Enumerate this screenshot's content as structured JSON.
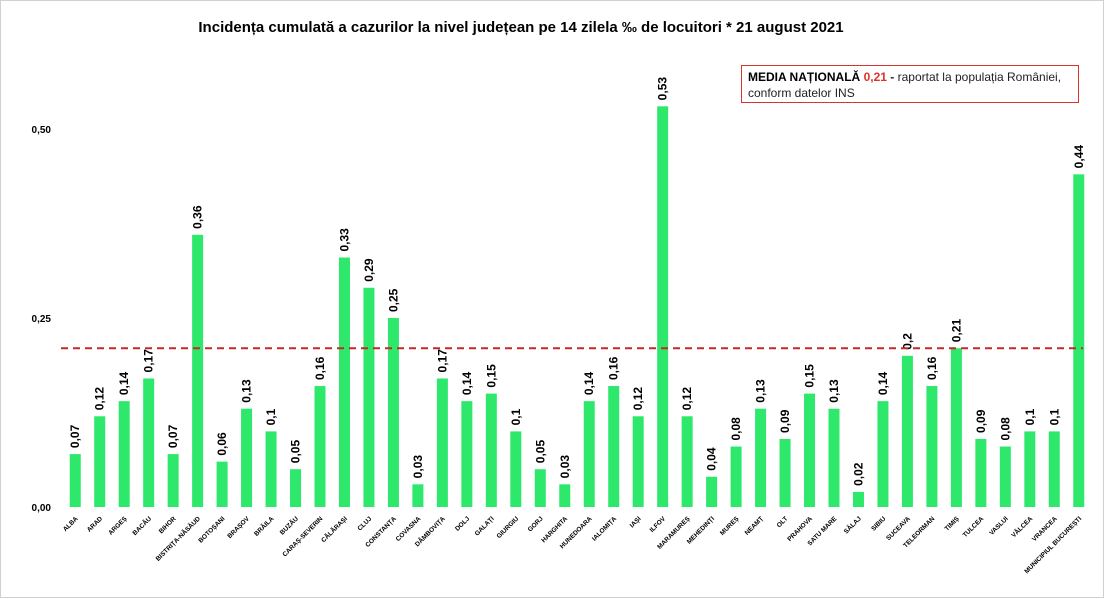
{
  "chart_data": {
    "type": "bar",
    "title": "Incidența cumulată a cazurilor la nivel județean pe 14 zilela ‰ de locuitori *  21 august 2021",
    "xlabel": "",
    "ylabel": "",
    "ylim": [
      0,
      0.56
    ],
    "yticks": [
      "0,00",
      "0,25",
      "0,50"
    ],
    "ytick_values": [
      0,
      0.25,
      0.5
    ],
    "grid": false,
    "bar_color": "#2ee86c",
    "reference_line": {
      "value": 0.21,
      "color": "#c62828",
      "style": "dashed"
    },
    "categories": [
      "ALBA",
      "ARAD",
      "ARGEȘ",
      "BACĂU",
      "BIHOR",
      "BISTRIȚA-NĂSĂUD",
      "BOTOȘANI",
      "BRAȘOV",
      "BRĂILA",
      "BUZĂU",
      "CARAȘ-SEVERIN",
      "CĂLĂRAȘI",
      "CLUJ",
      "CONSTANȚA",
      "COVASNA",
      "DÂMBOVIȚA",
      "DOLJ",
      "GALAȚI",
      "GIURGIU",
      "GORJ",
      "HARGHITA",
      "HUNEDOARA",
      "IALOMIȚA",
      "IAȘI",
      "ILFOV",
      "MARAMUREȘ",
      "MEHEDINȚI",
      "MUREȘ",
      "NEAMȚ",
      "OLT",
      "PRAHOVA",
      "SATU MARE",
      "SĂLAJ",
      "SIBIU",
      "SUCEAVA",
      "TELEORMAN",
      "TIMIȘ",
      "TULCEA",
      "VASLUI",
      "VÂLCEA",
      "VRANCEA",
      "MUNICIPIUL BUCUREȘTI"
    ],
    "values": [
      0.07,
      0.12,
      0.14,
      0.17,
      0.07,
      0.36,
      0.06,
      0.13,
      0.1,
      0.05,
      0.16,
      0.33,
      0.29,
      0.25,
      0.03,
      0.17,
      0.14,
      0.15,
      0.1,
      0.05,
      0.03,
      0.14,
      0.16,
      0.12,
      0.53,
      0.12,
      0.04,
      0.08,
      0.13,
      0.09,
      0.15,
      0.13,
      0.02,
      0.14,
      0.2,
      0.16,
      0.21,
      0.09,
      0.08,
      0.1,
      0.1,
      0.44
    ],
    "value_labels": [
      "0,07",
      "0,12",
      "0,14",
      "0,17",
      "0,07",
      "0,36",
      "0,06",
      "0,13",
      "0,1",
      "0,05",
      "0,16",
      "0,33",
      "0,29",
      "0,25",
      "0,03",
      "0,17",
      "0,14",
      "0,15",
      "0,1",
      "0,05",
      "0,03",
      "0,14",
      "0,16",
      "0,12",
      "0,53",
      "0,12",
      "0,04",
      "0,08",
      "0,13",
      "0,09",
      "0,15",
      "0,13",
      "0,02",
      "0,14",
      "0,2",
      "0,16",
      "0,21",
      "0,09",
      "0,08",
      "0,1",
      "0,1",
      "0,44"
    ]
  },
  "annotation": {
    "label": "MEDIA NAȚIONALĂ",
    "value": "0,21",
    "dash": "-",
    "text1": "raportat la populația României,",
    "text2": "conform datelor INS"
  }
}
